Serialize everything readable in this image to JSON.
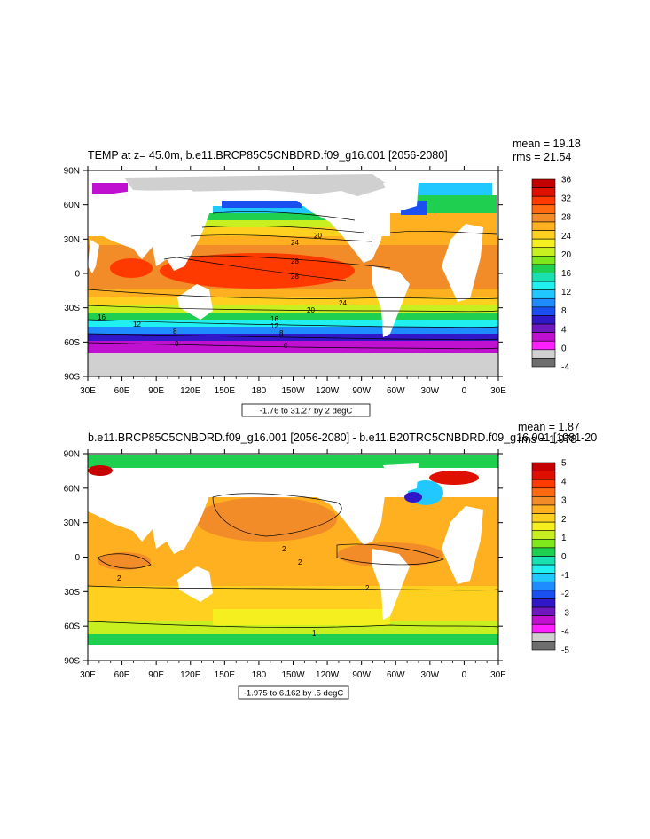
{
  "chart_data": [
    {
      "type": "heatmap",
      "title": "TEMP at z=  45.0m, b.e11.BRCP85C5CNBDRD.f09_g16.001 [2056-2080]",
      "stats": {
        "mean": "mean = 19.18",
        "rms": "rms = 21.54"
      },
      "x_ticks": [
        "30E",
        "60E",
        "90E",
        "120E",
        "150E",
        "180",
        "150W",
        "120W",
        "90W",
        "60W",
        "30W",
        "0",
        "30E"
      ],
      "y_ticks": [
        "90N",
        "60N",
        "30N",
        "0",
        "30S",
        "60S",
        "90S"
      ],
      "contour_info": "-1.76 to 31.27 by 2 degC",
      "colorbar_labels": [
        "36",
        "32",
        "28",
        "24",
        "20",
        "16",
        "12",
        "8",
        "4",
        "0",
        "-4"
      ],
      "colorbar_colors": [
        "#c40000",
        "#e01000",
        "#ff3a00",
        "#ff6a10",
        "#f28c28",
        "#ffb020",
        "#ffd020",
        "#f6ef20",
        "#c8f020",
        "#7fe81c",
        "#1fd050",
        "#18e0b0",
        "#20f0f0",
        "#20c8ff",
        "#1e8cff",
        "#1a50f0",
        "#3018c8",
        "#7018c0",
        "#c010d0",
        "#ff20ff",
        "#d0d0d0",
        "#6e6e6e"
      ],
      "contour_labels": [
        "24",
        "28",
        "28",
        "20",
        "24",
        "20",
        "16",
        "16",
        "12",
        "12",
        "8",
        "8",
        "0",
        "0"
      ]
    },
    {
      "type": "heatmap",
      "title": "b.e11.BRCP85C5CNBDRD.f09_g16.001 [2056-2080] - b.e11.B20TRC5CNBDRD.f09_g16.001 [1981-20",
      "stats": {
        "mean": "mean = 1.87",
        "rms": "rms = 1.978"
      },
      "x_ticks": [
        "30E",
        "60E",
        "90E",
        "120E",
        "150E",
        "180",
        "150W",
        "120W",
        "90W",
        "60W",
        "30W",
        "0",
        "30E"
      ],
      "y_ticks": [
        "90N",
        "60N",
        "30N",
        "0",
        "30S",
        "60S",
        "90S"
      ],
      "contour_info": "-1.975 to 6.162 by .5 degC",
      "colorbar_labels": [
        "5",
        "4",
        "3",
        "2",
        "1",
        "0",
        "-1",
        "-2",
        "-3",
        "-4",
        "-5"
      ],
      "colorbar_colors": [
        "#c40000",
        "#e01000",
        "#ff3a00",
        "#ff6a10",
        "#f28c28",
        "#ffb020",
        "#ffd020",
        "#f6ef20",
        "#c8f020",
        "#7fe81c",
        "#1fd050",
        "#18e0b0",
        "#20f0f0",
        "#20c8ff",
        "#1e8cff",
        "#1a50f0",
        "#3018c8",
        "#7018c0",
        "#c010d0",
        "#ff20ff",
        "#d0d0d0",
        "#6e6e6e"
      ],
      "contour_labels": [
        "2",
        "2",
        "2",
        "2",
        "1"
      ]
    }
  ]
}
